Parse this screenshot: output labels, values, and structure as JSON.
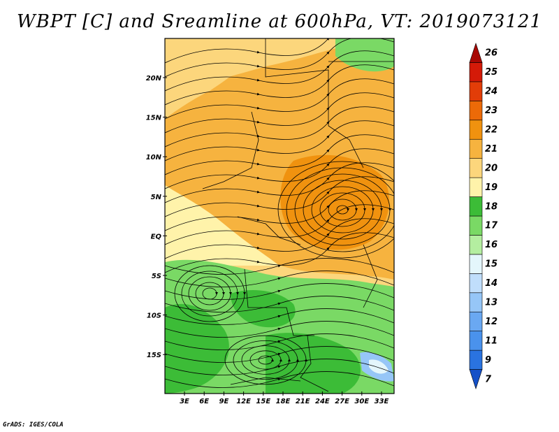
{
  "title": "WBPT [C] and Sreamline at 600hPa, VT: 2019073121",
  "footer": "GrADS: IGES/COLA",
  "map": {
    "lat_labels": [
      "20N",
      "15N",
      "10N",
      "5N",
      "EQ",
      "5S",
      "10S",
      "15S"
    ],
    "lon_labels": [
      "3E",
      "6E",
      "9E",
      "12E",
      "15E",
      "18E",
      "21E",
      "24E",
      "27E",
      "30E",
      "33E"
    ],
    "field": "wet-bulb potential temperature",
    "overlay": "streamlines",
    "level_hpa": 600
  },
  "colorbar": {
    "labels": [
      "7",
      "9",
      "11",
      "12",
      "13",
      "14",
      "15",
      "16",
      "17",
      "18",
      "19",
      "20",
      "21",
      "22",
      "23",
      "24",
      "25",
      "26"
    ],
    "colors": [
      "#1450c8",
      "#2a73e0",
      "#4a92ec",
      "#6aa8f2",
      "#96c6f7",
      "#c0defb",
      "#e4f6fb",
      "#b4eea0",
      "#7ad965",
      "#3cbc37",
      "#fff3aa",
      "#fcd67c",
      "#f6b33f",
      "#f0920f",
      "#ec6a08",
      "#e23d08",
      "#d41a08",
      "#a80804"
    ],
    "extend": "both"
  },
  "regions": {
    "ocean_shading": "#fff3aa",
    "north_shading": "#fcd67c",
    "central_shading": "#f6b33f",
    "south_shading": "#7ad965",
    "southeast_shading": "#3cbc37",
    "lake_shading": "#96c6f7"
  }
}
